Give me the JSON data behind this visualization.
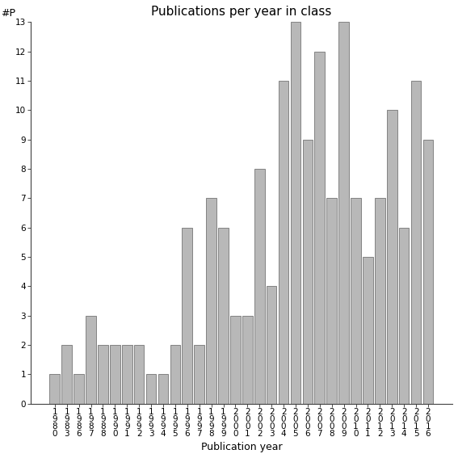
{
  "title": "Publications per year in class",
  "xlabel": "Publication year",
  "ylabel": "#P",
  "categories": [
    "1\n9\n8\n0",
    "1\n9\n8\n3",
    "1\n9\n8\n6",
    "1\n9\n8\n7",
    "1\n9\n8\n8",
    "1\n9\n9\n0",
    "1\n9\n9\n1",
    "1\n9\n9\n2",
    "1\n9\n9\n3",
    "1\n9\n9\n4",
    "1\n9\n9\n5",
    "1\n9\n9\n6",
    "1\n9\n9\n7",
    "1\n9\n9\n8",
    "1\n9\n9\n9",
    "2\n0\n0\n0",
    "2\n0\n0\n1",
    "2\n0\n0\n2",
    "2\n0\n0\n3",
    "2\n0\n0\n4",
    "2\n0\n0\n5",
    "2\n0\n0\n6",
    "2\n0\n0\n7",
    "2\n0\n0\n8",
    "2\n0\n0\n9",
    "2\n0\n1\n0",
    "2\n0\n1\n1",
    "2\n0\n1\n2",
    "2\n0\n1\n3",
    "2\n0\n1\n4",
    "2\n0\n1\n5",
    "2\n0\n1\n6"
  ],
  "values": [
    1,
    2,
    1,
    3,
    2,
    2,
    2,
    2,
    1,
    1,
    2,
    6,
    2,
    7,
    6,
    3,
    3,
    8,
    4,
    11,
    13,
    9,
    12,
    7,
    13,
    7,
    5,
    7,
    10,
    6,
    11,
    9
  ],
  "bar_color": "#b8b8b8",
  "bar_edgecolor": "#606060",
  "ylim": [
    0,
    13
  ],
  "yticks": [
    0,
    1,
    2,
    3,
    4,
    5,
    6,
    7,
    8,
    9,
    10,
    11,
    12,
    13
  ],
  "background_color": "#ffffff",
  "title_fontsize": 11,
  "axis_label_fontsize": 9,
  "tick_fontsize": 7.5
}
